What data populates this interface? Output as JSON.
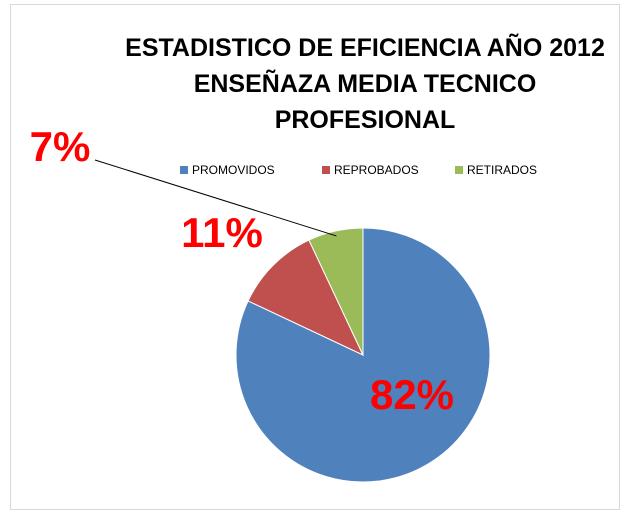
{
  "chart_data": {
    "type": "pie",
    "title": "ESTADISTICO DE EFICIENCIA AÑO 2012 ENSEÑAZA MEDIA TECNICO PROFESIONAL",
    "categories": [
      "PROMOVIDOS",
      "REPROBADOS",
      "RETIRADOS"
    ],
    "values": [
      82,
      11,
      7
    ],
    "value_labels": [
      "82%",
      "11%",
      "7%"
    ],
    "colors": [
      "#4f81bd",
      "#c0504d",
      "#9bbb59"
    ],
    "legend": "top"
  }
}
